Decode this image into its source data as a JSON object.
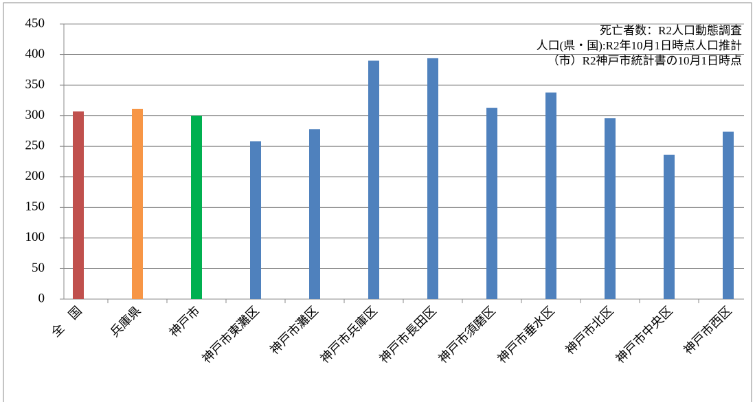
{
  "chart_data": {
    "type": "bar",
    "categories": [
      "全　国",
      "兵庫県",
      "神戸市",
      "神戸市東灘区",
      "神戸市灘区",
      "神戸市兵庫区",
      "神戸市長田区",
      "神戸市須磨区",
      "神戸市垂水区",
      "神戸市北区",
      "神戸市中央区",
      "神戸市西区"
    ],
    "values": [
      307,
      311,
      300,
      258,
      278,
      390,
      394,
      313,
      338,
      296,
      236,
      274
    ],
    "colors": [
      "#c0504d",
      "#f79646",
      "#00b050",
      "#4f81bd",
      "#4f81bd",
      "#4f81bd",
      "#4f81bd",
      "#4f81bd",
      "#4f81bd",
      "#4f81bd",
      "#4f81bd",
      "#4f81bd"
    ],
    "ylim": [
      0,
      450
    ],
    "yticks": [
      0,
      50,
      100,
      150,
      200,
      250,
      300,
      350,
      400,
      450
    ],
    "grid": true,
    "annotations": [
      "死亡者数：R2人口動態調査",
      "人口(県・国):R2年10月1日時点人口推計",
      "（市）R2神戸市統計書の10月1日時点"
    ]
  }
}
